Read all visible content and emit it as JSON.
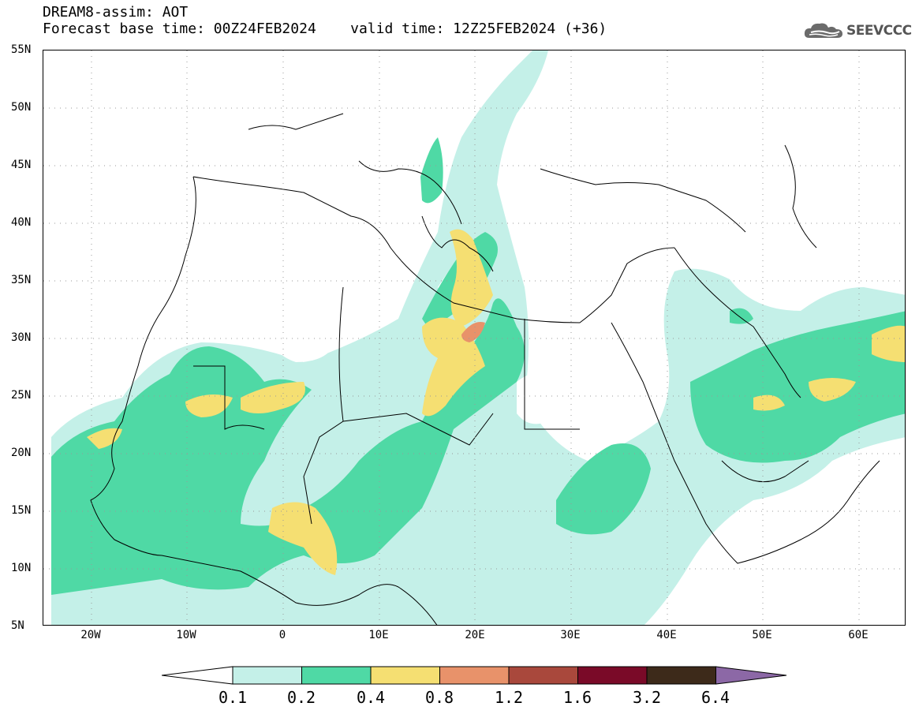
{
  "header": {
    "line1": "DREAM8-assim: AOT",
    "line2": "Forecast base time: 00Z24FEB2024    valid time: 12Z25FEB2024 (+36)"
  },
  "logo": {
    "text": "SEEVCCC",
    "icon": "cloud-logo-icon"
  },
  "map": {
    "lat_range": [
      5,
      55
    ],
    "lon_range": [
      -25,
      65
    ],
    "lat_labels": [
      "55N",
      "50N",
      "45N",
      "40N",
      "35N",
      "30N",
      "25N",
      "20N",
      "15N",
      "10N",
      "5N"
    ],
    "lon_labels": [
      "20W",
      "10W",
      "0",
      "10E",
      "20E",
      "30E",
      "40E",
      "50E",
      "60E"
    ],
    "grid": "dotted"
  },
  "colorbar": {
    "levels": [
      "0.1",
      "0.2",
      "0.4",
      "0.8",
      "1.2",
      "1.6",
      "3.2",
      "6.4"
    ],
    "colors": [
      "#ffffff",
      "#c4f0e8",
      "#4fd9a5",
      "#f5df72",
      "#e8926a",
      "#a9483c",
      "#7a0a28",
      "#3d2a1a",
      "#8c68a6"
    ]
  }
}
